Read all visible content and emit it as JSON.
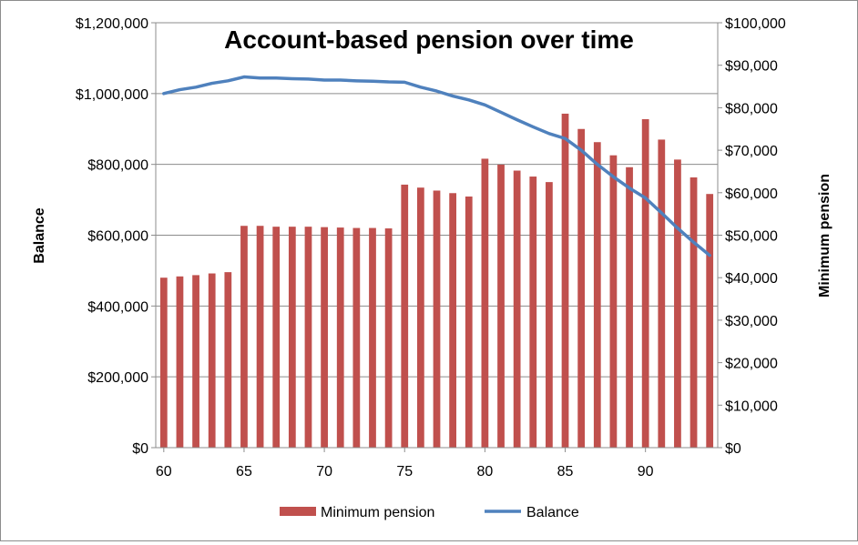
{
  "chart_data": {
    "type": "bar+line",
    "title": "Account-based pension over time",
    "xlabel": "",
    "ylabel_left": "Balance",
    "ylabel_right": "Minimum pension",
    "x": [
      60,
      61,
      62,
      63,
      64,
      65,
      66,
      67,
      68,
      69,
      70,
      71,
      72,
      73,
      74,
      75,
      76,
      77,
      78,
      79,
      80,
      81,
      82,
      83,
      84,
      85,
      86,
      87,
      88,
      89,
      90,
      91,
      92,
      93,
      94
    ],
    "xlim": [
      59.5,
      94.5
    ],
    "x_ticks": [
      "60",
      "65",
      "70",
      "75",
      "80",
      "85",
      "90"
    ],
    "x_tick_values": [
      60,
      65,
      70,
      75,
      80,
      85,
      90
    ],
    "ylim_left": [
      0,
      1200000
    ],
    "ylim_right": [
      0,
      100000
    ],
    "y_ticks_left": [
      "$0",
      "$200,000",
      "$400,000",
      "$600,000",
      "$800,000",
      "$1,000,000",
      "$1,200,000"
    ],
    "y_tick_values_left": [
      0,
      200000,
      400000,
      600000,
      800000,
      1000000,
      1200000
    ],
    "y_ticks_right": [
      "$0",
      "$10,000",
      "$20,000",
      "$30,000",
      "$40,000",
      "$50,000",
      "$60,000",
      "$70,000",
      "$80,000",
      "$90,000",
      "$100,000"
    ],
    "y_tick_values_right": [
      0,
      10000,
      20000,
      30000,
      40000,
      50000,
      60000,
      70000,
      80000,
      90000,
      100000
    ],
    "grid": "horizontal",
    "legend_position": "bottom",
    "series": [
      {
        "name": "Minimum pension",
        "type": "bar",
        "axis": "right",
        "color": "#c0504d",
        "values": [
          40000,
          40300,
          40600,
          41000,
          41300,
          52200,
          52200,
          52000,
          52000,
          52000,
          51900,
          51800,
          51700,
          51700,
          51600,
          61900,
          61200,
          60500,
          59900,
          59100,
          68000,
          66600,
          65200,
          63800,
          62500,
          78600,
          75000,
          71900,
          68800,
          66000,
          77300,
          72500,
          67800,
          63600,
          59700
        ]
      },
      {
        "name": "Balance",
        "type": "line",
        "axis": "left",
        "color": "#4f81bd",
        "values": [
          1000000,
          1011000,
          1018000,
          1029000,
          1036000,
          1047000,
          1044000,
          1044000,
          1042000,
          1041000,
          1038000,
          1038000,
          1036000,
          1035000,
          1033000,
          1032000,
          1018000,
          1007000,
          993000,
          982000,
          968000,
          947000,
          926000,
          906000,
          887000,
          873000,
          840000,
          800000,
          765000,
          733000,
          705000,
          663000,
          620000,
          580000,
          543000
        ]
      }
    ]
  }
}
